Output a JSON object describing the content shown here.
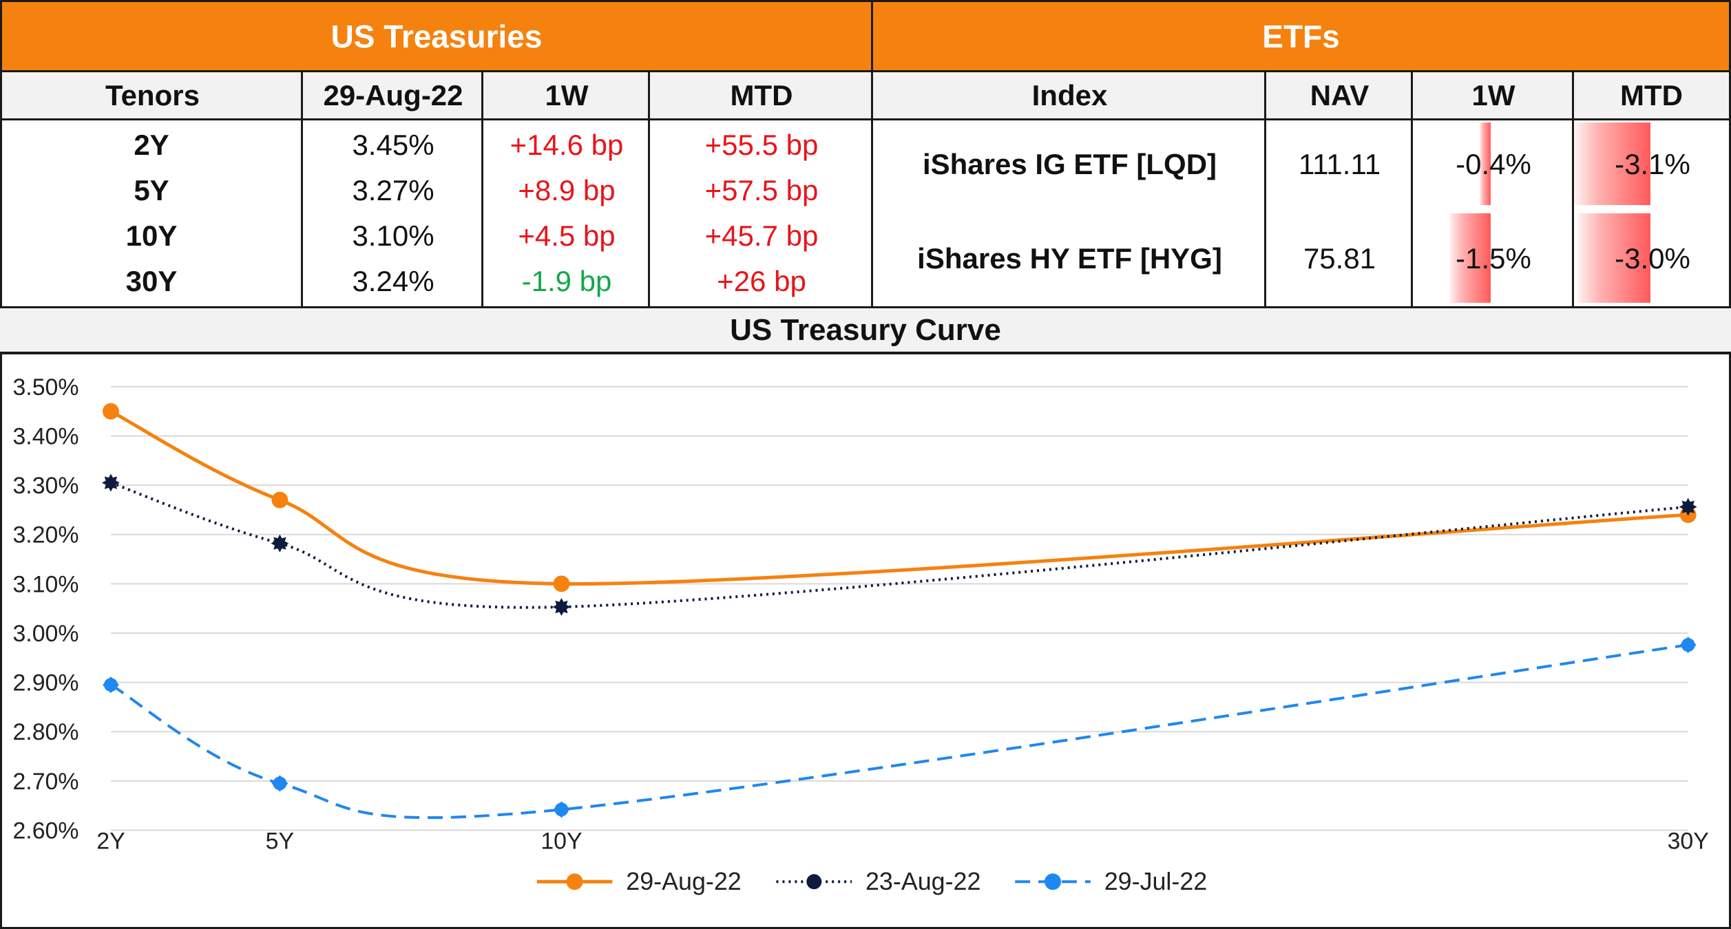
{
  "treasuries": {
    "header": "US Treasuries",
    "columns": [
      "Tenors",
      "29-Aug-22",
      "1W",
      "MTD"
    ],
    "rows": [
      {
        "tenor": "2Y",
        "yield": "3.45%",
        "w1": "+14.6 bp",
        "mtd": "+55.5 bp",
        "w1_color": "red",
        "mtd_color": "red"
      },
      {
        "tenor": "5Y",
        "yield": "3.27%",
        "w1": "+8.9 bp",
        "mtd": "+57.5 bp",
        "w1_color": "red",
        "mtd_color": "red"
      },
      {
        "tenor": "10Y",
        "yield": "3.10%",
        "w1": "+4.5 bp",
        "mtd": "+45.7 bp",
        "w1_color": "red",
        "mtd_color": "red"
      },
      {
        "tenor": "30Y",
        "yield": "3.24%",
        "w1": "-1.9 bp",
        "mtd": "+26 bp",
        "w1_color": "green",
        "mtd_color": "red"
      }
    ]
  },
  "etfs": {
    "header": "ETFs",
    "columns": [
      "Index",
      "NAV",
      "1W",
      "MTD"
    ],
    "rows": [
      {
        "index": "iShares IG ETF [LQD]",
        "nav": "111.11",
        "w1": "-0.4%",
        "mtd": "-3.1%",
        "w1_value": -0.4,
        "mtd_value": -3.1
      },
      {
        "index": "iShares HY ETF [HYG]",
        "nav": "75.81",
        "w1": "-1.5%",
        "mtd": "-3.0%",
        "w1_value": -1.5,
        "mtd_value": -3.0
      }
    ]
  },
  "colors": {
    "accent": "#f5820f",
    "negative_text": "#e8141a",
    "positive_text": "#13a84a",
    "bar_fill": "#ff5a5a"
  },
  "chart_data": {
    "type": "line",
    "title": "US Treasury Curve",
    "x_labels": [
      "2Y",
      "5Y",
      "10Y",
      "30Y"
    ],
    "x": [
      2,
      5,
      10,
      30
    ],
    "yticks": [
      "3.50%",
      "3.40%",
      "3.30%",
      "3.20%",
      "3.10%",
      "3.00%",
      "2.90%",
      "2.80%",
      "2.70%",
      "2.60%"
    ],
    "ylim": [
      2.6,
      3.5
    ],
    "series": [
      {
        "name": "29-Aug-22",
        "values": [
          3.45,
          3.27,
          3.1,
          3.24
        ],
        "color": "#f5820f",
        "style": "solid"
      },
      {
        "name": "23-Aug-22",
        "values": [
          3.305,
          3.182,
          3.053,
          3.256
        ],
        "color": "#0d1b3e",
        "style": "dotted"
      },
      {
        "name": "29-Jul-22",
        "values": [
          2.895,
          2.695,
          2.642,
          2.976
        ],
        "color": "#1e87f0",
        "style": "dashed"
      }
    ],
    "legend": "bottom",
    "grid": true
  }
}
